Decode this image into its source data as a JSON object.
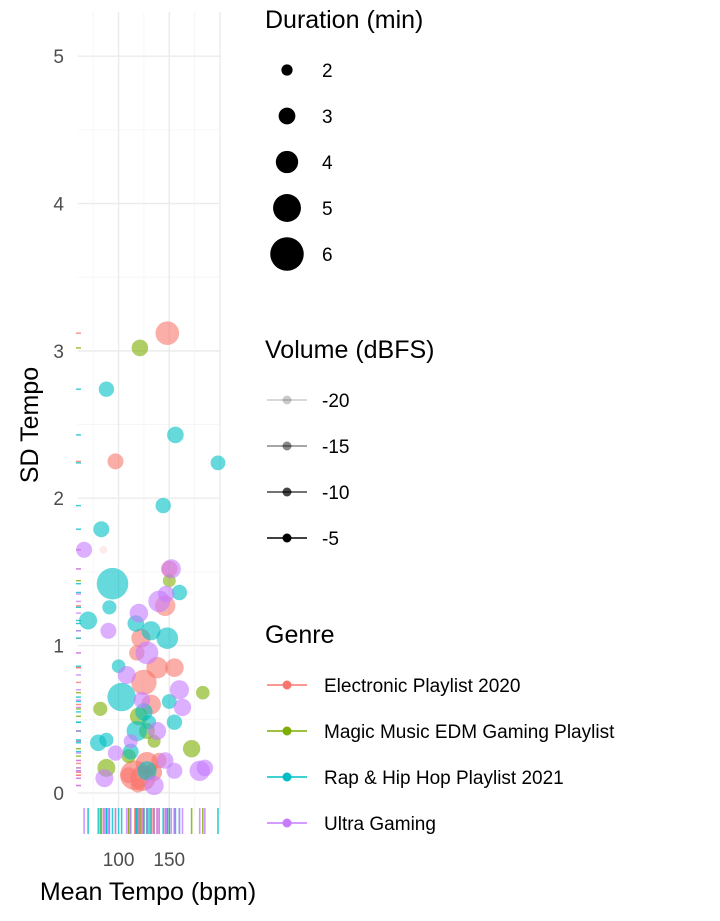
{
  "chart_data": {
    "type": "scatter",
    "title": "",
    "xlabel": "Mean Tempo (bpm)",
    "ylabel": "SD Tempo",
    "xlim": [
      60,
      200
    ],
    "ylim": [
      -0.15,
      5.3
    ],
    "x_ticks": [
      100,
      150
    ],
    "y_ticks": [
      0,
      1,
      2,
      3,
      4,
      5
    ],
    "grid": true,
    "rug": true,
    "colors": {
      "Electronic Playlist 2020": "#F8766D",
      "Magic Music EDM Gaming Playlist": "#7CAE00",
      "Rap & Hip Hop Playlist 2021": "#00BFC4",
      "Ultra Gaming": "#C77CFF"
    },
    "size_legend": {
      "title": "Duration (min)",
      "items": [
        {
          "value": 2,
          "label": "2"
        },
        {
          "value": 3,
          "label": "3"
        },
        {
          "value": 4,
          "label": "4"
        },
        {
          "value": 5,
          "label": "5"
        },
        {
          "value": 6,
          "label": "6"
        }
      ]
    },
    "alpha_legend": {
      "title": "Volume (dBFS)",
      "items": [
        {
          "value": -20,
          "label": "-20"
        },
        {
          "value": -15,
          "label": "-15"
        },
        {
          "value": -10,
          "label": "-10"
        },
        {
          "value": -5,
          "label": "-5"
        }
      ]
    },
    "color_legend": {
      "title": "Genre",
      "items": [
        {
          "name": "Electronic Playlist 2020",
          "label": "Electronic Playlist 2020"
        },
        {
          "name": "Magic Music EDM Gaming Playlist",
          "label": "Magic Music EDM Gaming Playlist"
        },
        {
          "name": "Rap & Hip Hop Playlist 2021",
          "label": "Rap & Hip Hop Playlist 2021"
        },
        {
          "name": "Ultra Gaming",
          "label": "Ultra Gaming"
        }
      ]
    },
    "series": [
      {
        "name": "Electronic Playlist 2020",
        "points": [
          {
            "x": 148,
            "y": 3.12,
            "duration": 4.5,
            "volume": -8
          },
          {
            "x": 97,
            "y": 2.25,
            "duration": 3.3,
            "volume": -8
          },
          {
            "x": 150,
            "y": 1.52,
            "duration": 3.4,
            "volume": -8
          },
          {
            "x": 146,
            "y": 1.27,
            "duration": 4.0,
            "volume": -9
          },
          {
            "x": 122,
            "y": 1.05,
            "duration": 3.8,
            "volume": -8
          },
          {
            "x": 138,
            "y": 0.85,
            "duration": 4.2,
            "volume": -8
          },
          {
            "x": 155,
            "y": 0.85,
            "duration": 3.7,
            "volume": -8
          },
          {
            "x": 125,
            "y": 0.75,
            "duration": 4.8,
            "volume": -8
          },
          {
            "x": 118,
            "y": 0.95,
            "duration": 3.2,
            "volume": -8
          },
          {
            "x": 132,
            "y": 0.6,
            "duration": 3.9,
            "volume": -8
          },
          {
            "x": 128,
            "y": 0.2,
            "duration": 4.4,
            "volume": -7
          },
          {
            "x": 110,
            "y": 0.12,
            "duration": 3.3,
            "volume": -8
          },
          {
            "x": 116,
            "y": 0.12,
            "duration": 5.5,
            "volume": -7
          },
          {
            "x": 124,
            "y": 0.1,
            "duration": 4.8,
            "volume": -7
          },
          {
            "x": 134,
            "y": 0.14,
            "duration": 3.6,
            "volume": -7
          },
          {
            "x": 140,
            "y": 0.22,
            "duration": 3.2,
            "volume": -8
          },
          {
            "x": 119,
            "y": 0.05,
            "duration": 3.0,
            "volume": -8
          },
          {
            "x": 85,
            "y": 1.65,
            "duration": 2.0,
            "volume": -20
          }
        ]
      },
      {
        "name": "Magic Music EDM Gaming Playlist",
        "points": [
          {
            "x": 121,
            "y": 3.02,
            "duration": 3.4,
            "volume": -8
          },
          {
            "x": 150,
            "y": 1.44,
            "duration": 2.8,
            "volume": -9
          },
          {
            "x": 82,
            "y": 0.57,
            "duration": 3.0,
            "volume": -8
          },
          {
            "x": 120,
            "y": 0.52,
            "duration": 3.6,
            "volume": -8
          },
          {
            "x": 183,
            "y": 0.68,
            "duration": 2.9,
            "volume": -8
          },
          {
            "x": 172,
            "y": 0.3,
            "duration": 3.5,
            "volume": -8
          },
          {
            "x": 88,
            "y": 0.17,
            "duration": 3.6,
            "volume": -8
          },
          {
            "x": 128,
            "y": 0.42,
            "duration": 3.3,
            "volume": -8
          },
          {
            "x": 110,
            "y": 0.25,
            "duration": 3.0,
            "volume": -8
          },
          {
            "x": 135,
            "y": 0.35,
            "duration": 2.8,
            "volume": -8
          }
        ]
      },
      {
        "name": "Rap & Hip Hop Playlist 2021",
        "points": [
          {
            "x": 88,
            "y": 2.74,
            "duration": 3.2,
            "volume": -8
          },
          {
            "x": 156,
            "y": 2.43,
            "duration": 3.4,
            "volume": -8
          },
          {
            "x": 198,
            "y": 2.24,
            "duration": 3.1,
            "volume": -8
          },
          {
            "x": 144,
            "y": 1.95,
            "duration": 3.2,
            "volume": -8
          },
          {
            "x": 83,
            "y": 1.79,
            "duration": 3.3,
            "volume": -8
          },
          {
            "x": 94,
            "y": 1.42,
            "duration": 5.8,
            "volume": -8
          },
          {
            "x": 91,
            "y": 1.26,
            "duration": 3.0,
            "volume": -8
          },
          {
            "x": 160,
            "y": 1.36,
            "duration": 3.2,
            "volume": -8
          },
          {
            "x": 70,
            "y": 1.17,
            "duration": 3.6,
            "volume": -8
          },
          {
            "x": 117,
            "y": 1.15,
            "duration": 3.4,
            "volume": -8
          },
          {
            "x": 132,
            "y": 1.1,
            "duration": 3.8,
            "volume": -8
          },
          {
            "x": 148,
            "y": 1.05,
            "duration": 4.2,
            "volume": -8
          },
          {
            "x": 100,
            "y": 0.86,
            "duration": 2.9,
            "volume": -8
          },
          {
            "x": 103,
            "y": 0.65,
            "duration": 5.3,
            "volume": -8
          },
          {
            "x": 150,
            "y": 0.62,
            "duration": 3.1,
            "volume": -8
          },
          {
            "x": 125,
            "y": 0.55,
            "duration": 3.5,
            "volume": -8
          },
          {
            "x": 130,
            "y": 0.48,
            "duration": 3.0,
            "volume": -8
          },
          {
            "x": 118,
            "y": 0.42,
            "duration": 4.0,
            "volume": -8
          },
          {
            "x": 155,
            "y": 0.48,
            "duration": 3.2,
            "volume": -8
          },
          {
            "x": 80,
            "y": 0.34,
            "duration": 3.4,
            "volume": -8
          },
          {
            "x": 88,
            "y": 0.36,
            "duration": 3.0,
            "volume": -8
          },
          {
            "x": 128,
            "y": 0.15,
            "duration": 3.8,
            "volume": -8
          },
          {
            "x": 112,
            "y": 0.28,
            "duration": 3.3,
            "volume": -8
          }
        ]
      },
      {
        "name": "Ultra Gaming",
        "points": [
          {
            "x": 66,
            "y": 1.65,
            "duration": 3.3,
            "volume": -8
          },
          {
            "x": 152,
            "y": 1.52,
            "duration": 3.8,
            "volume": -8
          },
          {
            "x": 147,
            "y": 1.35,
            "duration": 3.4,
            "volume": -8
          },
          {
            "x": 140,
            "y": 1.3,
            "duration": 4.2,
            "volume": -8
          },
          {
            "x": 90,
            "y": 1.1,
            "duration": 3.3,
            "volume": -8
          },
          {
            "x": 120,
            "y": 1.22,
            "duration": 3.7,
            "volume": -8
          },
          {
            "x": 128,
            "y": 0.95,
            "duration": 4.4,
            "volume": -8
          },
          {
            "x": 160,
            "y": 0.7,
            "duration": 3.8,
            "volume": -8
          },
          {
            "x": 163,
            "y": 0.58,
            "duration": 3.5,
            "volume": -8
          },
          {
            "x": 108,
            "y": 0.8,
            "duration": 3.6,
            "volume": -8
          },
          {
            "x": 123,
            "y": 0.63,
            "duration": 3.4,
            "volume": -8
          },
          {
            "x": 86,
            "y": 0.1,
            "duration": 3.6,
            "volume": -8
          },
          {
            "x": 97,
            "y": 0.27,
            "duration": 3.2,
            "volume": -8
          },
          {
            "x": 135,
            "y": 0.05,
            "duration": 3.8,
            "volume": -8
          },
          {
            "x": 155,
            "y": 0.15,
            "duration": 3.3,
            "volume": -8
          },
          {
            "x": 180,
            "y": 0.15,
            "duration": 4.0,
            "volume": -8
          },
          {
            "x": 185,
            "y": 0.17,
            "duration": 3.4,
            "volume": -8
          },
          {
            "x": 146,
            "y": 0.22,
            "duration": 3.4,
            "volume": -8
          },
          {
            "x": 112,
            "y": 0.35,
            "duration": 3.0,
            "volume": -8
          },
          {
            "x": 138,
            "y": 0.42,
            "duration": 3.6,
            "volume": -8
          }
        ]
      }
    ]
  }
}
